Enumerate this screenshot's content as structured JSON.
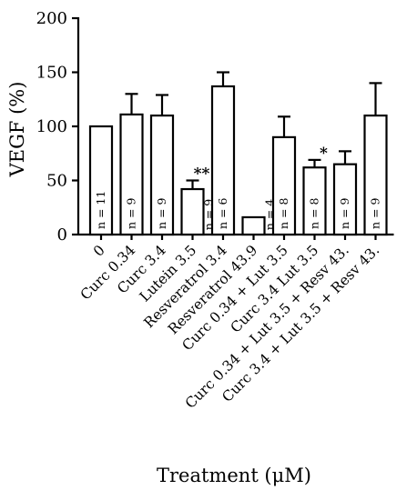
{
  "chart_data": {
    "type": "bar",
    "title": "",
    "xlabel": "Treatment (μM)",
    "ylabel": "VEGF (%)",
    "ylim": [
      0,
      200
    ],
    "yticks": [
      0,
      50,
      100,
      150,
      200
    ],
    "categories": [
      "0",
      "Curc 0.34",
      "Curc 3.4",
      "Lutein 3.5",
      "Resveratrol 3.4",
      "Resveratrol 43.9",
      "Curc 0.34 + Lut 3.5",
      "Curc 3.4 Lut 3.5",
      "Curc 0.34 + Lut 3.5 + Resv 43.",
      "Curc 3.4 + Lut 3.5 + Resv 43."
    ],
    "values": [
      100,
      111,
      110,
      42,
      137,
      16,
      90,
      62,
      65,
      110
    ],
    "errors": [
      0,
      19,
      19,
      8,
      13,
      0,
      19,
      7,
      12,
      30
    ],
    "n_labels": [
      "n = 11",
      "n = 9",
      "n = 9",
      "n = 9",
      "n = 6",
      "n = 4",
      "n = 8",
      "n = 8",
      "n = 9",
      "n = 9"
    ],
    "significance": [
      "",
      "",
      "",
      "**",
      "",
      "",
      "",
      "*",
      "",
      ""
    ],
    "grid": false,
    "legend": "none"
  }
}
